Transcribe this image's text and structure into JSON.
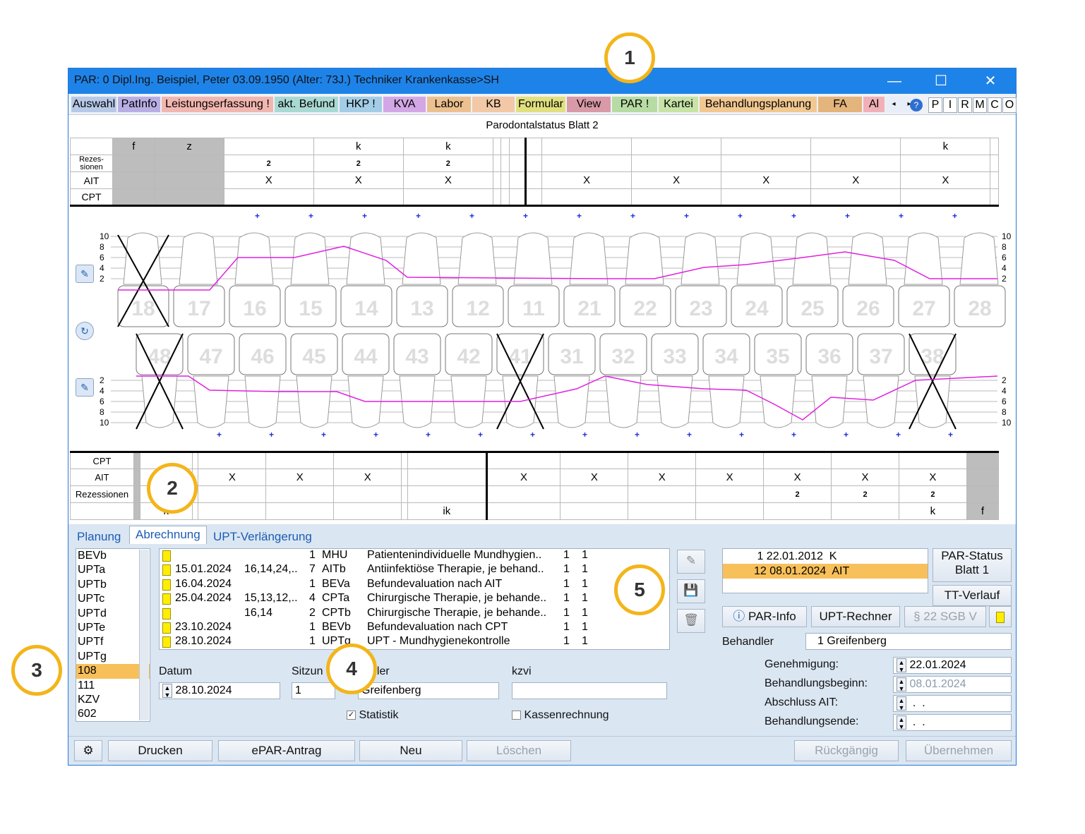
{
  "window": {
    "title": "PAR: 0  Dipl.Ing. Beispiel, Peter  03.09.1950 (Alter: 73J.)  Techniker Krankenkasse>SH",
    "min": "—",
    "max": "☐",
    "close": "✕"
  },
  "menu": {
    "tabs": [
      "Auswahl",
      "PatInfo",
      "Leistungserfassung !",
      "akt. Befund",
      "HKP !",
      "KVA",
      "Labor",
      "KB",
      "Formular",
      "View",
      "PAR !",
      "Kartei",
      "Behandlungsplanung",
      "FA",
      "Al"
    ],
    "extra": [
      "P",
      "I",
      "R",
      "M",
      "C",
      "O"
    ],
    "help": "?"
  },
  "chart": {
    "title": "Parodontalstatus Blatt 2",
    "upper_rows": {
      "labels": [
        "Rezes-\nsionen",
        "AIT",
        "CPT"
      ],
      "top": [
        "f",
        "z",
        "",
        "k",
        "k",
        "",
        "",
        "",
        "",
        "",
        "",
        "",
        "",
        "k",
        ""
      ],
      "rez": [
        "",
        "",
        "2",
        "2",
        "2",
        "",
        "",
        "",
        "",
        "",
        "",
        "",
        "",
        "",
        ""
      ],
      "ait": [
        "",
        "",
        "X",
        "X",
        "X",
        "",
        "",
        "",
        "",
        "X",
        "X",
        "X",
        "X",
        "X",
        ""
      ]
    },
    "upper_teeth": [
      "18",
      "17",
      "16",
      "15",
      "14",
      "13",
      "12",
      "11",
      "21",
      "22",
      "23",
      "24",
      "25",
      "26",
      "27",
      "28"
    ],
    "lower_teeth": [
      "48",
      "47",
      "46",
      "45",
      "44",
      "43",
      "42",
      "41",
      "31",
      "32",
      "33",
      "34",
      "35",
      "36",
      "37",
      "38"
    ],
    "scale": [
      "10",
      "8",
      "6",
      "4",
      "2"
    ],
    "lower_rows": {
      "labels": [
        "CPT",
        "AIT",
        "Rezessionen"
      ],
      "ait": [
        "",
        "",
        "",
        "X",
        "X",
        "X",
        "",
        "",
        "X",
        "X",
        "X",
        "X",
        "X",
        "X",
        "X",
        ""
      ],
      "rez": [
        "",
        "",
        "",
        "",
        "",
        "",
        "",
        "",
        "",
        "",
        "",
        "",
        "2",
        "2",
        "2",
        ""
      ],
      "bot": [
        "",
        "k",
        "",
        "",
        "",
        "",
        "",
        "ik",
        "",
        "",
        "",
        "",
        "",
        "",
        "k",
        "f"
      ]
    }
  },
  "tabs": {
    "t1": "Planung",
    "t2": "Abrechnung",
    "t3": "UPT-Verlängerung"
  },
  "codes": [
    "BEVb",
    "UPTa",
    "UPTb",
    "UPTc",
    "UPTd",
    "UPTe",
    "UPTf",
    "UPTg",
    "108",
    "111",
    "KZV",
    "602"
  ],
  "entries": [
    {
      "date": "",
      "teeth": "",
      "n": "1",
      "code": "MHU",
      "desc": "Patientenindividuelle Mundhygien..",
      "a": "1",
      "b": "1"
    },
    {
      "date": "15.01.2024",
      "teeth": "16,14,24,..",
      "n": "7",
      "code": "AITb",
      "desc": "Antiinfektiöse Therapie, je behand..",
      "a": "1",
      "b": "1"
    },
    {
      "date": "16.04.2024",
      "teeth": "",
      "n": "1",
      "code": "BEVa",
      "desc": "Befundevaluation nach AIT",
      "a": "1",
      "b": "1"
    },
    {
      "date": "25.04.2024",
      "teeth": "15,13,12,..",
      "n": "4",
      "code": "CPTa",
      "desc": "Chirurgische Therapie, je behande..",
      "a": "1",
      "b": "1"
    },
    {
      "date": "",
      "teeth": "16,14",
      "n": "2",
      "code": "CPTb",
      "desc": "Chirurgische Therapie, je behande..",
      "a": "1",
      "b": "1"
    },
    {
      "date": "23.10.2024",
      "teeth": "",
      "n": "1",
      "code": "BEVb",
      "desc": "Befundevaluation nach CPT",
      "a": "1",
      "b": "1"
    },
    {
      "date": "28.10.2024",
      "teeth": "",
      "n": "1",
      "code": "UPTg",
      "desc": "UPT - Mundhygienekontrolle",
      "a": "1",
      "b": "1"
    }
  ],
  "form": {
    "datum_label": "Datum",
    "datum": "28.10.2024",
    "sitzung_label": "Sitzun",
    "sitzung": "1",
    "behandler_label": "dler",
    "behandler": "Greifenberg",
    "kzvi_label": "kzvi",
    "statistik": "Statistik",
    "kassen": "Kassenrechnung"
  },
  "status": [
    {
      "n": "1",
      "date": "22.01.2012",
      "type": "K"
    },
    {
      "n": "12",
      "date": "08.01.2024",
      "type": "AIT"
    }
  ],
  "right": {
    "par_status": "PAR-Status\nBlatt 1",
    "tt": "TT-Verlauf",
    "par_info": "PAR-Info",
    "upt_rechner": "UPT-Rechner",
    "sgb": "§ 22 SGB V",
    "behandler_label": "Behandler",
    "behandler": "1 Greifenberg",
    "dates": [
      {
        "label": "Genehmigung:",
        "value": "22.01.2024"
      },
      {
        "label": "Behandlungsbeginn:",
        "value": "08.01.2024"
      },
      {
        "label": "Abschluss AIT:",
        "value": " .  . "
      },
      {
        "label": "Behandlungsende:",
        "value": " .  . "
      }
    ]
  },
  "footer": {
    "drucken": "Drucken",
    "epar": "ePAR-Antrag",
    "neu": "Neu",
    "loeschen": "Löschen",
    "rueck": "Rückgängig",
    "uebern": "Übernehmen"
  },
  "callouts": [
    "1",
    "2",
    "3",
    "4",
    "5"
  ]
}
